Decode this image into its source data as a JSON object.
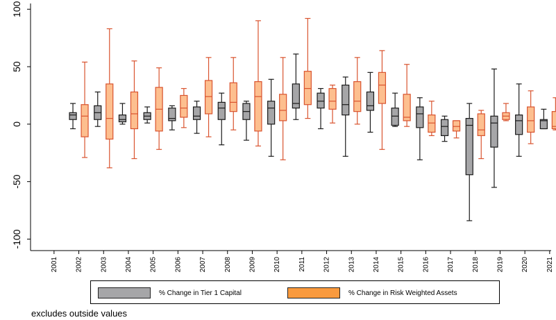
{
  "chart_data": {
    "type": "boxplot",
    "categories": [
      "2001",
      "2002",
      "2003",
      "2004",
      "2005",
      "2006",
      "2007",
      "2008",
      "2009",
      "2010",
      "2011",
      "2012",
      "2013",
      "2014",
      "2015",
      "2016",
      "2017",
      "2018",
      "2019",
      "2020",
      "2021"
    ],
    "ylim": [
      -110,
      105
    ],
    "yticks": [
      100,
      50,
      0,
      -50,
      -100
    ],
    "ytick_labels": [
      "100",
      "50",
      "0",
      "-50",
      "-100"
    ],
    "grid": false,
    "legend_position": "bottom",
    "note": "excludes outside values",
    "series": [
      {
        "name": "% Change in Tier 1 Capital",
        "fill": "#a6a6a8",
        "stroke": "#1a1a1a",
        "boxes": [
          null,
          {
            "whisker_low": -4,
            "q1": 4,
            "median": 8,
            "q3": 10,
            "whisker_high": 18
          },
          {
            "whisker_low": -2,
            "q1": 4,
            "median": 10,
            "q3": 16,
            "whisker_high": 28
          },
          {
            "whisker_low": 0,
            "q1": 2,
            "median": 4,
            "q3": 8,
            "whisker_high": 18
          },
          {
            "whisker_low": 1,
            "q1": 4,
            "median": 7,
            "q3": 10,
            "whisker_high": 15
          },
          {
            "whisker_low": -5,
            "q1": 3,
            "median": 5,
            "q3": 14,
            "whisker_high": 16
          },
          {
            "whisker_low": -8,
            "q1": 4,
            "median": 7,
            "q3": 15,
            "whisker_high": 20
          },
          {
            "whisker_low": -18,
            "q1": 4,
            "median": 14,
            "q3": 19,
            "whisker_high": 27
          },
          {
            "whisker_low": -14,
            "q1": 4,
            "median": 11,
            "q3": 18,
            "whisker_high": 20
          },
          {
            "whisker_low": -28,
            "q1": 0,
            "median": 14,
            "q3": 20,
            "whisker_high": 39
          },
          {
            "whisker_low": 4,
            "q1": 14,
            "median": 18,
            "q3": 35,
            "whisker_high": 61
          },
          {
            "whisker_low": -4,
            "q1": 14,
            "median": 20,
            "q3": 27,
            "whisker_high": 31
          },
          {
            "whisker_low": -28,
            "q1": 8,
            "median": 17,
            "q3": 34,
            "whisker_high": 41
          },
          {
            "whisker_low": -7,
            "q1": 12,
            "median": 16,
            "q3": 28,
            "whisker_high": 45
          },
          {
            "whisker_low": -2,
            "q1": -1,
            "median": 7,
            "q3": 14,
            "whisker_high": 27
          },
          {
            "whisker_low": -31,
            "q1": -3,
            "median": 9,
            "q3": 15,
            "whisker_high": 23
          },
          {
            "whisker_low": -15,
            "q1": -10,
            "median": -2,
            "q3": 4,
            "whisker_high": 7
          },
          {
            "whisker_low": -84,
            "q1": -44,
            "median": -1,
            "q3": 5,
            "whisker_high": 18
          },
          {
            "whisker_low": -55,
            "q1": -20,
            "median": 1,
            "q3": 7,
            "whisker_high": 48
          },
          {
            "whisker_low": -28,
            "q1": -9,
            "median": 3,
            "q3": 8,
            "whisker_high": 35
          },
          {
            "whisker_low": -4,
            "q1": -4,
            "median": 3,
            "q3": 4,
            "whisker_high": 13
          }
        ]
      },
      {
        "name": "% Change in Risk Weighted Assets",
        "fill": "#fdbf8f",
        "stroke": "#d9532e",
        "boxes": [
          null,
          {
            "whisker_low": -29,
            "q1": -11,
            "median": 7,
            "q3": 17,
            "whisker_high": 54
          },
          {
            "whisker_low": -38,
            "q1": -13,
            "median": 5,
            "q3": 35,
            "whisker_high": 83
          },
          {
            "whisker_low": -30,
            "q1": -4,
            "median": 9,
            "q3": 28,
            "whisker_high": 55
          },
          {
            "whisker_low": -22,
            "q1": -6,
            "median": 13,
            "q3": 32,
            "whisker_high": 49
          },
          {
            "whisker_low": -3,
            "q1": 6,
            "median": 14,
            "q3": 25,
            "whisker_high": 31
          },
          {
            "whisker_low": -11,
            "q1": 9,
            "median": 24,
            "q3": 38,
            "whisker_high": 58
          },
          {
            "whisker_low": -5,
            "q1": 11,
            "median": 19,
            "q3": 36,
            "whisker_high": 58
          },
          {
            "whisker_low": -19,
            "q1": -6,
            "median": 24,
            "q3": 37,
            "whisker_high": 90
          },
          {
            "whisker_low": -31,
            "q1": 3,
            "median": 12,
            "q3": 26,
            "whisker_high": 58
          },
          {
            "whisker_low": 5,
            "q1": 17,
            "median": 31,
            "q3": 46,
            "whisker_high": 92
          },
          {
            "whisker_low": 1,
            "q1": 13,
            "median": 20,
            "q3": 31,
            "whisker_high": 34
          },
          {
            "whisker_low": 0,
            "q1": 11,
            "median": 20,
            "q3": 37,
            "whisker_high": 58
          },
          {
            "whisker_low": -22,
            "q1": 18,
            "median": 34,
            "q3": 45,
            "whisker_high": 64
          },
          {
            "whisker_low": -2,
            "q1": 3,
            "median": 6,
            "q3": 26,
            "whisker_high": 52
          },
          {
            "whisker_low": -10,
            "q1": -7,
            "median": 1,
            "q3": 8,
            "whisker_high": 20
          },
          {
            "whisker_low": -12,
            "q1": -6,
            "median": -2,
            "q3": 3,
            "whisker_high": 3
          },
          {
            "whisker_low": -30,
            "q1": -10,
            "median": -5,
            "q3": 9,
            "whisker_high": 12
          },
          {
            "whisker_low": 3,
            "q1": 4,
            "median": 7,
            "q3": 10,
            "whisker_high": 18
          },
          {
            "whisker_low": -17,
            "q1": -7,
            "median": 3,
            "q3": 15,
            "whisker_high": 29
          },
          {
            "whisker_low": -5,
            "q1": -4,
            "median": -2,
            "q3": 11,
            "whisker_high": 23
          }
        ]
      }
    ]
  }
}
